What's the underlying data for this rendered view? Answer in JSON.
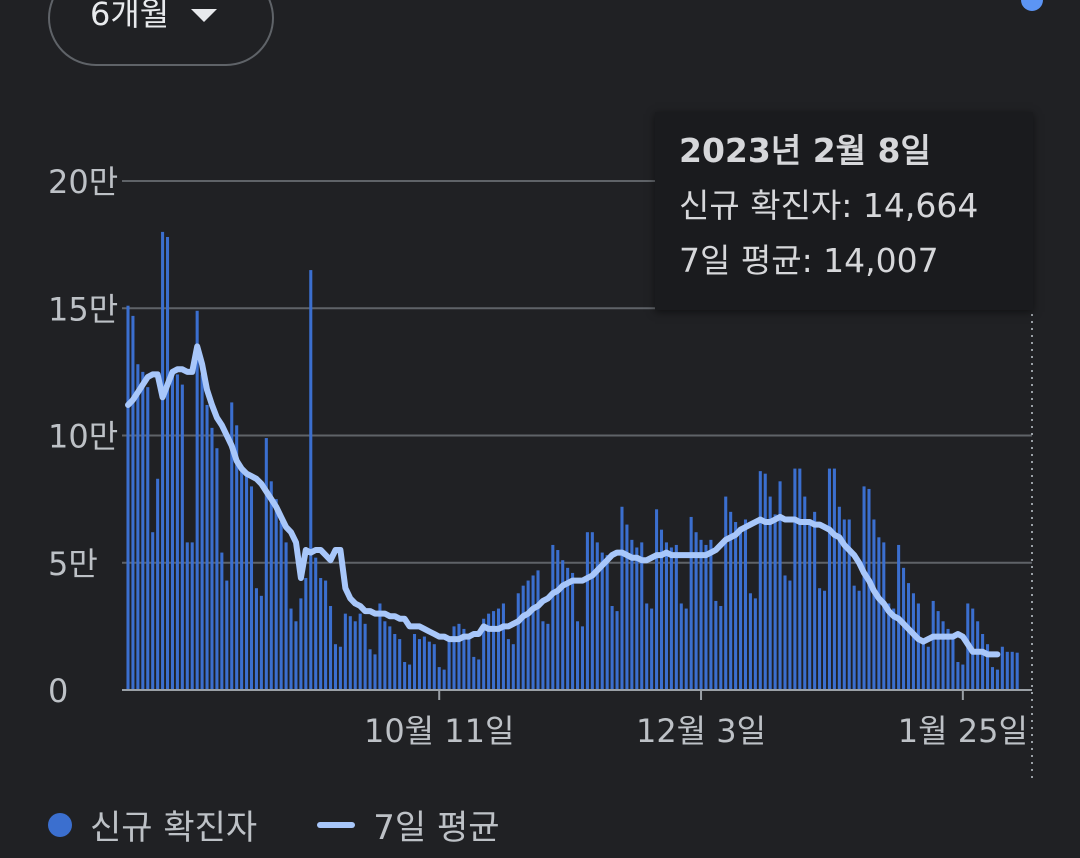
{
  "range_selector": {
    "label": "6개월",
    "icon": "caret-down-icon"
  },
  "tooltip": {
    "date": "2023년 2월 8일",
    "new_cases": "신규 확진자: 14,664",
    "avg7": "7일 평균: 14,007"
  },
  "legend": {
    "bars_label": "신규 확진자",
    "line_label": "7일 평균"
  },
  "colors": {
    "background": "#202124",
    "bar": "#3b6fcf",
    "line": "#a8c7fa",
    "highlight": "#5c95f5",
    "grid": "#5f6368",
    "text": "#bdc1c6"
  },
  "chart_data": {
    "type": "bar",
    "title": "",
    "xlabel": "",
    "ylabel": "",
    "ylim": [
      0,
      200000
    ],
    "y_ticks": [
      {
        "value": 0,
        "label": "0"
      },
      {
        "value": 50000,
        "label": "5만"
      },
      {
        "value": 100000,
        "label": "10만"
      },
      {
        "value": 150000,
        "label": "15만"
      },
      {
        "value": 200000,
        "label": "20만"
      }
    ],
    "x_ticks": [
      {
        "date": "2022-10-11",
        "label": "10월 11일"
      },
      {
        "date": "2022-12-03",
        "label": "12월 3일"
      },
      {
        "date": "2023-01-25",
        "label": "1월 25일"
      }
    ],
    "x_range": [
      "2022-08-09",
      "2023-02-08"
    ],
    "highlighted_date": "2023-02-08",
    "series": [
      {
        "name": "신규 확진자",
        "type": "bar",
        "values": [
          151000,
          147000,
          128000,
          125000,
          119000,
          62000,
          83000,
          180000,
          178000,
          125000,
          124000,
          120000,
          58000,
          58000,
          149000,
          124000,
          112000,
          103000,
          95000,
          54000,
          43000,
          113000,
          104000,
          87000,
          84000,
          80000,
          40000,
          37000,
          99000,
          82000,
          75000,
          66000,
          58000,
          32000,
          27000,
          36000,
          44000,
          165000,
          52000,
          44000,
          43000,
          33000,
          18000,
          17000,
          30000,
          29000,
          27000,
          30000,
          26000,
          16000,
          14000,
          34000,
          27000,
          25000,
          22000,
          20000,
          11000,
          10000,
          22000,
          20000,
          21000,
          19000,
          18000,
          9000,
          8000,
          21000,
          25000,
          26000,
          24000,
          22000,
          13000,
          12000,
          28000,
          30000,
          31000,
          32000,
          34000,
          20000,
          18000,
          38000,
          41000,
          43000,
          45000,
          47000,
          27000,
          26000,
          57000,
          55000,
          51000,
          48000,
          46000,
          27000,
          25000,
          62000,
          62000,
          58000,
          54000,
          53000,
          33000,
          31000,
          72000,
          65000,
          59000,
          56000,
          58000,
          34000,
          32000,
          71000,
          63000,
          58000,
          56000,
          57000,
          34000,
          32000,
          68000,
          62000,
          59000,
          57000,
          59000,
          35000,
          33000,
          76000,
          70000,
          66000,
          64000,
          67000,
          38000,
          36000,
          86000,
          85000,
          76000,
          69000,
          82000,
          45000,
          43000,
          87000,
          87000,
          76000,
          65000,
          70000,
          40000,
          39000,
          87000,
          87000,
          72000,
          67000,
          67000,
          41000,
          39000,
          80000,
          79000,
          67000,
          60000,
          58000,
          34000,
          32000,
          57000,
          48000,
          42000,
          38000,
          34000,
          19000,
          17000,
          35000,
          31000,
          27000,
          24000,
          21000,
          11000,
          10000,
          34000,
          32000,
          27000,
          22000,
          18000,
          9000,
          8000,
          17000,
          15000,
          15000,
          14664
        ]
      },
      {
        "name": "7일 평균",
        "type": "line",
        "values": [
          112000,
          114000,
          117000,
          120000,
          123000,
          124000,
          124000,
          115000,
          120000,
          125000,
          126000,
          126000,
          125000,
          125000,
          135000,
          128000,
          118000,
          112000,
          107000,
          104000,
          100000,
          96000,
          90000,
          87000,
          85000,
          84000,
          83000,
          81000,
          78000,
          75000,
          72000,
          68000,
          64000,
          62000,
          58000,
          44000,
          55000,
          54000,
          55000,
          55000,
          53000,
          51000,
          55000,
          55000,
          40000,
          36000,
          34000,
          33000,
          31000,
          31000,
          30000,
          30000,
          30000,
          29000,
          29000,
          28000,
          28000,
          25000,
          25000,
          25000,
          24000,
          23000,
          22000,
          21000,
          21000,
          20000,
          20000,
          20000,
          21000,
          21000,
          22000,
          22000,
          25000,
          24000,
          24000,
          24000,
          25000,
          25000,
          26000,
          27000,
          29000,
          30000,
          32000,
          33000,
          35000,
          36000,
          38000,
          39000,
          41000,
          42000,
          43000,
          43000,
          43000,
          44000,
          45000,
          47000,
          49000,
          51000,
          53000,
          54000,
          54000,
          53000,
          52000,
          52000,
          51000,
          51000,
          52000,
          53000,
          53000,
          54000,
          53000,
          53000,
          53000,
          53000,
          53000,
          53000,
          53000,
          53000,
          54000,
          55000,
          57000,
          59000,
          60000,
          61000,
          63000,
          64000,
          65000,
          66000,
          67000,
          66000,
          66000,
          67000,
          68000,
          67000,
          67000,
          67000,
          66000,
          66000,
          66000,
          65000,
          65000,
          64000,
          63000,
          61000,
          60000,
          57000,
          55000,
          53000,
          50000,
          46000,
          43000,
          39000,
          36000,
          34000,
          31000,
          29000,
          28000,
          26000,
          24000,
          22000,
          20000,
          19000,
          20000,
          21000,
          21000,
          21000,
          21000,
          21000,
          22000,
          21000,
          18000,
          15000,
          15000,
          15000,
          14000,
          14000,
          14007
        ]
      }
    ]
  }
}
